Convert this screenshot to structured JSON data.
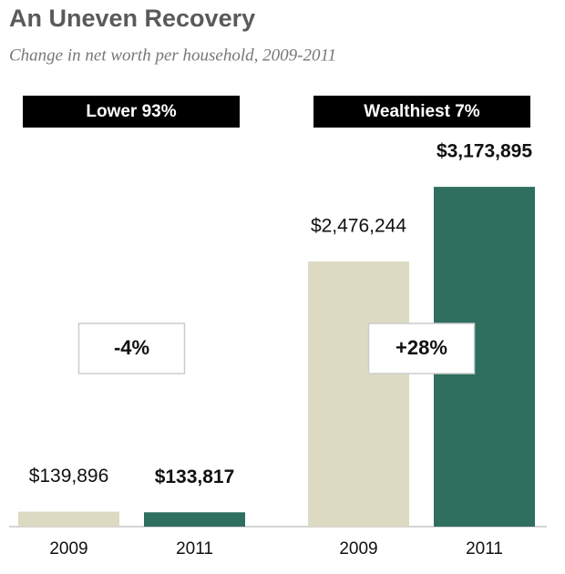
{
  "chart_data": {
    "type": "bar",
    "title": "An Uneven Recovery",
    "subtitle": "Change in net worth per household, 2009-2011",
    "colors": [
      "#dcdac2",
      "#2e6f5f"
    ],
    "ylim": [
      0,
      3200000
    ],
    "groups": [
      {
        "name": "Lower 93%",
        "categories": [
          "2009",
          "2011"
        ],
        "values": [
          139896,
          133817
        ],
        "value_labels": [
          "$139,896",
          "$133,817"
        ],
        "change": "-4%"
      },
      {
        "name": "Wealthiest 7%",
        "categories": [
          "2009",
          "2011"
        ],
        "values": [
          2476244,
          3173895
        ],
        "value_labels": [
          "$2,476,244",
          "$3,173,895"
        ],
        "change": "+28%"
      }
    ]
  }
}
